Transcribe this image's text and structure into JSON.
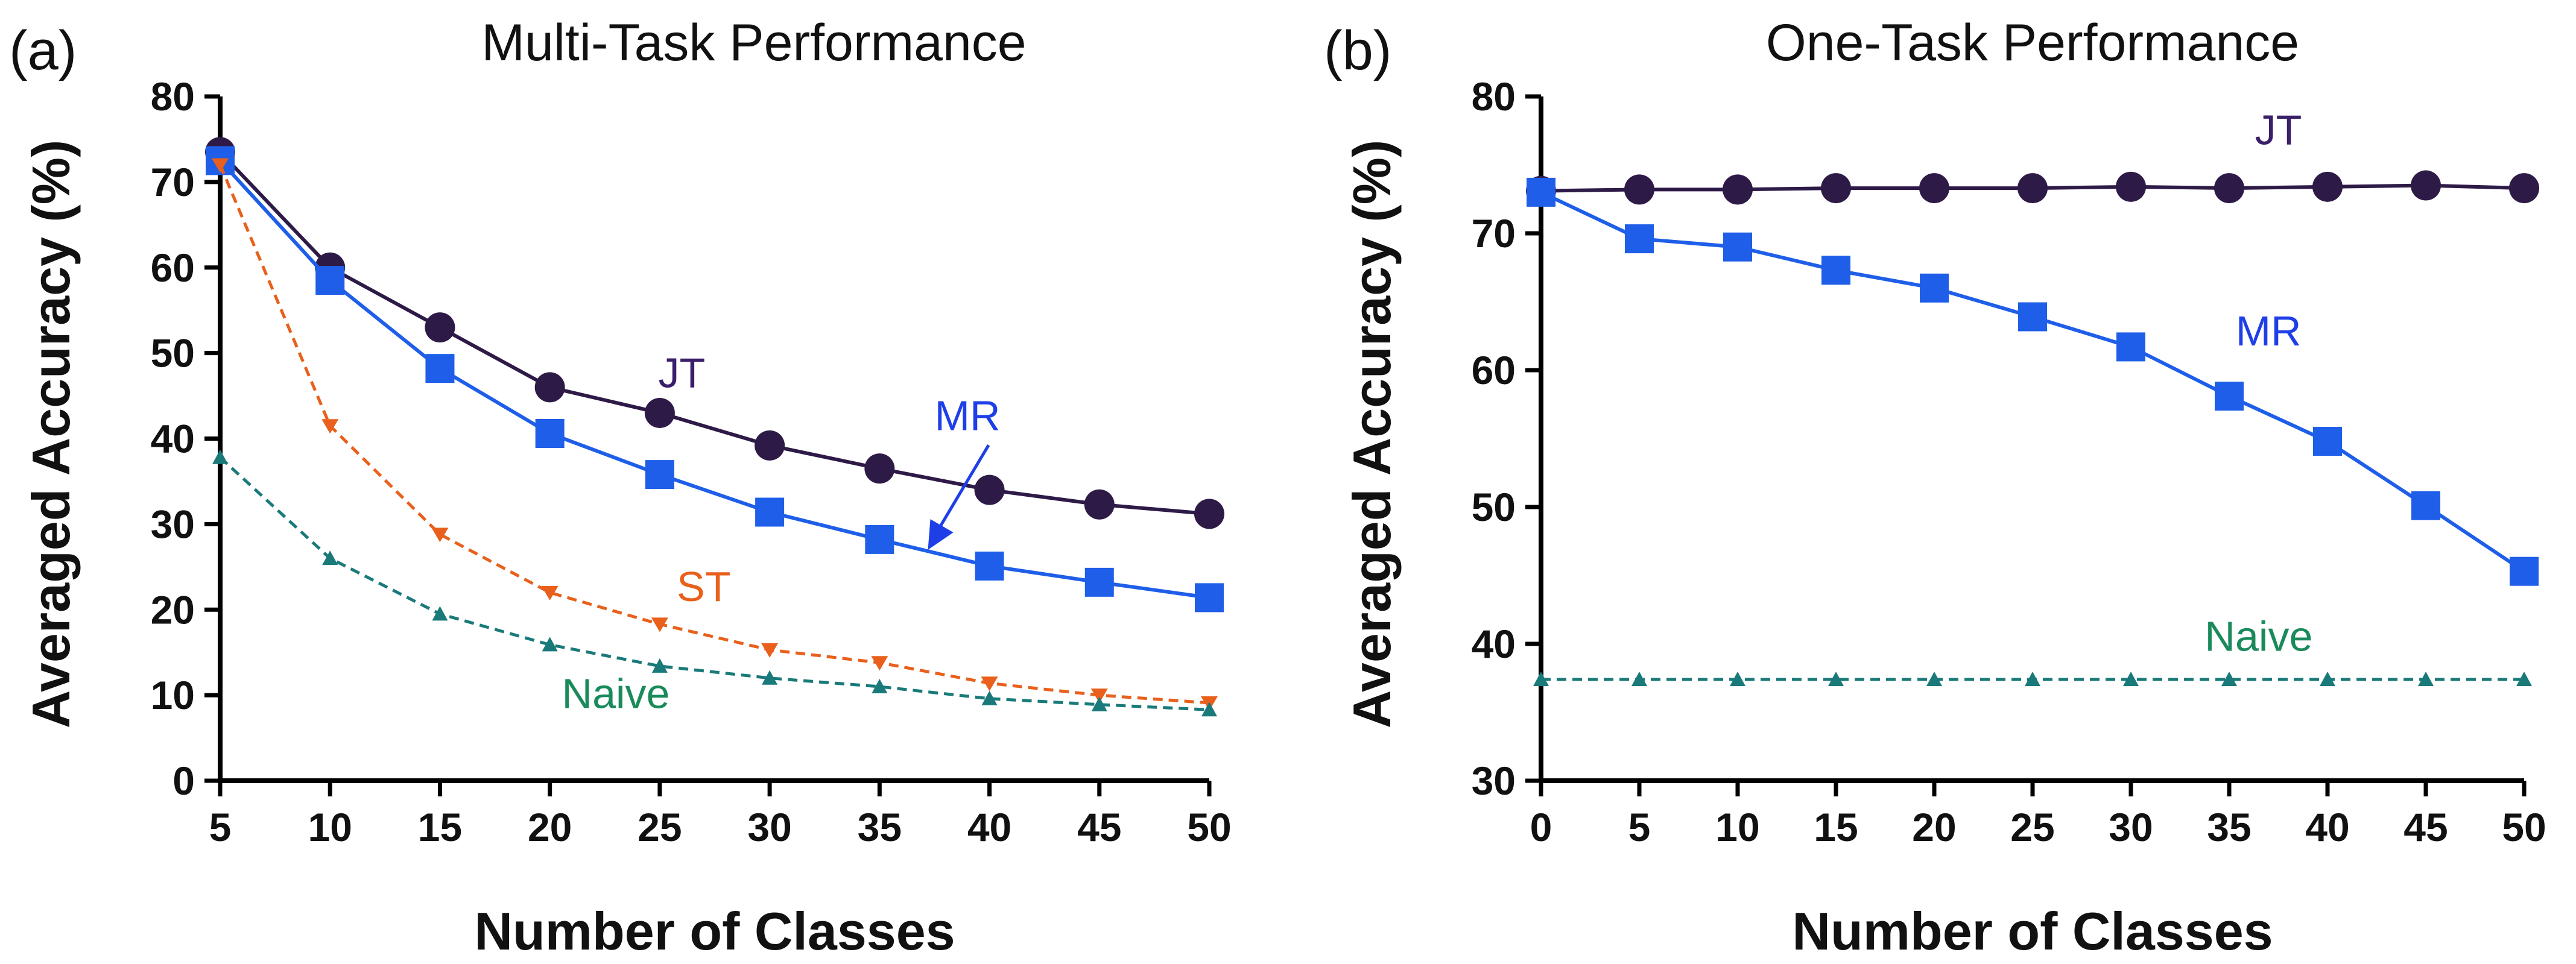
{
  "chart_data": [
    {
      "id": "a",
      "panel_label": "(a)",
      "type": "line",
      "title": "Multi-Task Performance",
      "xlabel": "Number of Classes",
      "ylabel": "Averaged Accuracy (%)",
      "xlim": [
        5,
        50
      ],
      "ylim": [
        0,
        80
      ],
      "xticks": [
        5,
        10,
        15,
        20,
        25,
        30,
        35,
        40,
        45,
        50
      ],
      "yticks": [
        0,
        10,
        20,
        30,
        40,
        50,
        60,
        70,
        80
      ],
      "x": [
        5,
        10,
        15,
        20,
        25,
        30,
        35,
        40,
        45,
        50
      ],
      "series": [
        {
          "name": "JT",
          "color": "#2e1a47",
          "marker": "circle",
          "dashed": false,
          "values": [
            73.5,
            60.0,
            53.0,
            46.0,
            43.0,
            39.2,
            36.5,
            34.0,
            32.3,
            31.2
          ]
        },
        {
          "name": "MR",
          "color": "#1e5ee8",
          "marker": "square",
          "dashed": false,
          "values": [
            72.5,
            58.5,
            48.2,
            40.6,
            35.8,
            31.4,
            28.2,
            25.1,
            23.2,
            21.4
          ]
        },
        {
          "name": "ST",
          "color": "#e8601c",
          "marker": "triangle-down",
          "dashed": true,
          "values": [
            72.0,
            41.5,
            28.8,
            22.0,
            18.3,
            15.3,
            13.8,
            11.4,
            10.0,
            9.1
          ]
        },
        {
          "name": "Naive",
          "color": "#1a7a7a",
          "marker": "triangle-up",
          "dashed": true,
          "values": [
            37.8,
            26.0,
            19.5,
            15.9,
            13.4,
            12.0,
            11.0,
            9.6,
            8.9,
            8.3
          ]
        }
      ],
      "annotations": [
        {
          "text": "JT",
          "color": "#3a1f6a",
          "x": 26.0,
          "y": 46.0
        },
        {
          "text": "MR",
          "color": "#1e3fe8",
          "x": 39.0,
          "y": 41.0,
          "arrow_to": [
            37.2,
            27.0
          ]
        },
        {
          "text": "ST",
          "color": "#e8601c",
          "x": 27.0,
          "y": 21.0
        },
        {
          "text": "Naive",
          "color": "#1a8a5a",
          "x": 23.0,
          "y": 8.5
        }
      ]
    },
    {
      "id": "b",
      "panel_label": "(b)",
      "type": "line",
      "title": "One-Task Performance",
      "xlabel": "Number of Classes",
      "ylabel": "Averaged Accuracy (%)",
      "xlim": [
        0,
        50
      ],
      "ylim": [
        30,
        80
      ],
      "xticks": [
        0,
        5,
        10,
        15,
        20,
        25,
        30,
        35,
        40,
        45,
        50
      ],
      "yticks": [
        30,
        40,
        50,
        60,
        70,
        80
      ],
      "x": [
        0,
        5,
        10,
        15,
        20,
        25,
        30,
        35,
        40,
        45,
        50
      ],
      "series": [
        {
          "name": "JT",
          "color": "#2e1a47",
          "marker": "circle",
          "dashed": false,
          "values": [
            73.1,
            73.2,
            73.2,
            73.3,
            73.3,
            73.3,
            73.4,
            73.3,
            73.4,
            73.5,
            73.3
          ]
        },
        {
          "name": "MR",
          "color": "#1e5ee8",
          "marker": "square",
          "dashed": false,
          "values": [
            73.0,
            69.6,
            69.0,
            67.3,
            66.0,
            63.9,
            61.7,
            58.1,
            54.8,
            50.1,
            45.3
          ]
        },
        {
          "name": "Naive",
          "color": "#1a7a7a",
          "marker": "triangle-up",
          "dashed": true,
          "values": [
            37.4,
            37.4,
            37.4,
            37.4,
            37.4,
            37.4,
            37.4,
            37.4,
            37.4,
            37.4,
            37.4
          ]
        }
      ],
      "annotations": [
        {
          "text": "JT",
          "color": "#3a1f6a",
          "x": 37.5,
          "y": 76.5
        },
        {
          "text": "MR",
          "color": "#1e3fe8",
          "x": 37.0,
          "y": 61.8
        },
        {
          "text": "Naive",
          "color": "#1a8a5a",
          "x": 36.5,
          "y": 39.5
        }
      ]
    }
  ]
}
